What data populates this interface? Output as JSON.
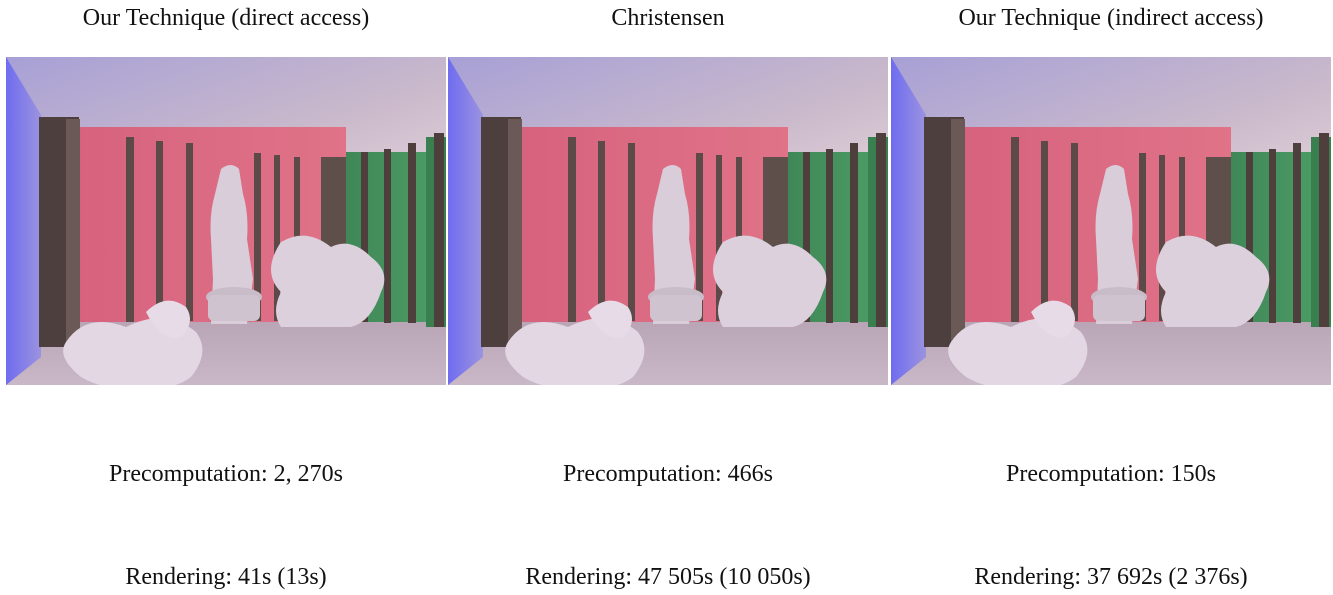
{
  "panels": [
    {
      "title": "Our Technique (direct access)",
      "precomputation": "Precomputation: 2, 270s",
      "rendering": "Rendering: 41s (13s)"
    },
    {
      "title": "Christensen",
      "precomputation": "Precomputation: 466s",
      "rendering": "Rendering: 47 505s (10 050s)"
    },
    {
      "title": "Our Technique (indirect access)",
      "precomputation": "Precomputation: 150s",
      "rendering": "Rendering: 37 692s (2 376s)"
    }
  ],
  "colors": {
    "left_wall": "#7b78e6",
    "ceiling": "#d6c6d6",
    "floor": "#c0afc0",
    "red_wall": "#d35f7a",
    "green_wall": "#3f8f5c",
    "pillar": "#5a4a48",
    "figure": "#ddd2de"
  }
}
